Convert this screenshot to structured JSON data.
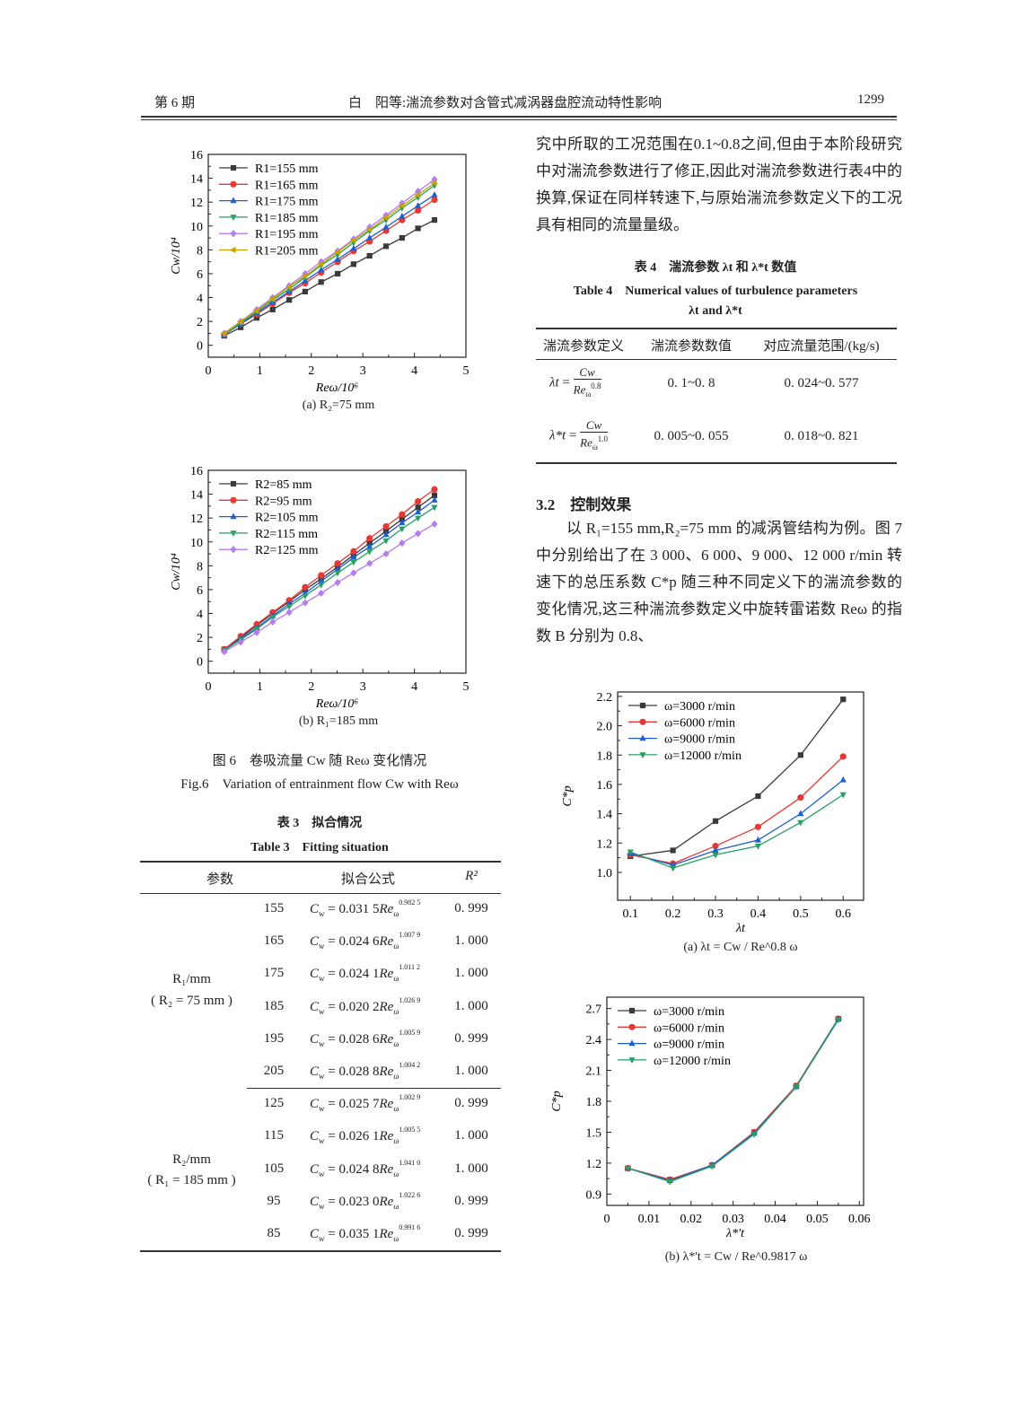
{
  "header": {
    "issue": "第 6 期",
    "title": "白　阳等:湍流参数对含管式减涡器盘腔流动特性影响",
    "page": "1299"
  },
  "right_text": {
    "para1": "究中所取的工况范围在0.1~0.8之间,但由于本阶段研究中对湍流参数进行了修正,因此对湍流参数进行表4中的换算,保证在同样转速下,与原始湍流参数定义下的工况具有相同的流量量级。",
    "section": "3.2　控制效果",
    "para2": "以 R₁=155 mm,R₂=75 mm 的减涡管结构为例。图 7 中分别给出了在 3 000、6 000、9 000、12 000 r/min 转速下的总压系数 C*p 随三种不同定义下的湍流参数的变化情况,这三种湍流参数定义中旋转雷诺数 Reω 的指数 B 分别为 0.8、"
  },
  "table4": {
    "caption_cn": "表 4　湍流参数 λt 和 λ*t 数值",
    "caption_en": "Table 4　Numerical values of turbulence parameters",
    "caption_en2": "λt and λ*t",
    "headers": [
      "湍流参数定义",
      "湍流参数数值",
      "对应流量范围/(kg/s)"
    ],
    "rows": [
      {
        "symbol": "λt",
        "num": "Cw",
        "den_base": "Re",
        "den_sub": "ω",
        "den_exp": "0.8",
        "value": "0. 1~0. 8",
        "range": "0. 024~0. 577"
      },
      {
        "symbol": "λ*t",
        "num": "Cw",
        "den_base": "Re",
        "den_sub": "ω",
        "den_exp": "1.0",
        "value": "0. 005~0. 055",
        "range": "0. 018~0. 821"
      }
    ]
  },
  "fig6": {
    "sub_a": "(a) R₂=75 mm",
    "sub_b": "(b) R₁=185 mm",
    "caption_cn": "图 6　卷吸流量 Cw 随 Reω 变化情况",
    "caption_en": "Fig.6　Variation of entrainment flow Cw with Reω"
  },
  "fig7": {
    "sub_a": "(a) λt = Cw / Re^0.8 ω",
    "sub_b": "(b) λ*'t = Cw / Re^0.9817 ω"
  },
  "table3": {
    "caption_cn": "表 3　拟合情况",
    "caption_en": "Table 3　Fitting situation",
    "headers": [
      "参数",
      "拟合公式",
      "R²"
    ],
    "group1": {
      "label": "R₁/mm",
      "cond": "( R₂ = 75 mm )"
    },
    "group2": {
      "label": "R₂/mm",
      "cond": "( R₁ = 185 mm )"
    },
    "rows": [
      {
        "param": "155",
        "coef": "0.031 5",
        "exp": "0.982 5",
        "r2": "0. 999"
      },
      {
        "param": "165",
        "coef": "0.024 6",
        "exp": "1.007 9",
        "r2": "1. 000"
      },
      {
        "param": "175",
        "coef": "0.024 1",
        "exp": "1.011 2",
        "r2": "1. 000"
      },
      {
        "param": "185",
        "coef": "0.020 2",
        "exp": "1.026 9",
        "r2": "1. 000"
      },
      {
        "param": "195",
        "coef": "0.028 6",
        "exp": "1.005 9",
        "r2": "0. 999"
      },
      {
        "param": "205",
        "coef": "0.028 8",
        "exp": "1.004 2",
        "r2": "1. 000"
      },
      {
        "param": "125",
        "coef": "0.025 7",
        "exp": "1.002 9",
        "r2": "0. 999"
      },
      {
        "param": "115",
        "coef": "0.026 1",
        "exp": "1.005 5",
        "r2": "1. 000"
      },
      {
        "param": "105",
        "coef": "0.024 8",
        "exp": "1.041 0",
        "r2": "1. 000"
      },
      {
        "param": "95",
        "coef": "0.023 0",
        "exp": "1.022 6",
        "r2": "0. 999"
      },
      {
        "param": "85",
        "coef": "0.035 1",
        "exp": "0.991 6",
        "r2": "0. 999"
      }
    ]
  },
  "chart_data": [
    {
      "id": "fig6a",
      "type": "line",
      "xlabel": "Reω/10⁶",
      "ylabel": "Cw/10⁴",
      "xlim": [
        0,
        5
      ],
      "ylim": [
        -1,
        16
      ],
      "xticks": [
        0,
        1,
        2,
        3,
        4,
        5
      ],
      "yticks": [
        0,
        2,
        4,
        6,
        8,
        10,
        12,
        14,
        16
      ],
      "legend": "top-left",
      "x": [
        0.31,
        0.63,
        0.94,
        1.25,
        1.57,
        1.88,
        2.19,
        2.51,
        2.82,
        3.13,
        3.45,
        3.76,
        4.07,
        4.39
      ],
      "series": [
        {
          "name": "R1=155 mm",
          "color": "#3a3a3a",
          "marker": "square",
          "values": [
            0.8,
            1.5,
            2.3,
            3.0,
            3.8,
            4.5,
            5.3,
            6.0,
            6.8,
            7.5,
            8.3,
            9.0,
            9.8,
            10.5
          ]
        },
        {
          "name": "R1=165 mm",
          "color": "#e53935",
          "marker": "circle",
          "values": [
            0.9,
            1.8,
            2.6,
            3.5,
            4.4,
            5.2,
            6.1,
            7.0,
            7.9,
            8.7,
            9.6,
            10.5,
            11.3,
            12.2
          ]
        },
        {
          "name": "R1=175 mm",
          "color": "#1e5fd0",
          "marker": "triangle-up",
          "values": [
            0.9,
            1.8,
            2.7,
            3.6,
            4.5,
            5.4,
            6.3,
            7.2,
            8.1,
            9.0,
            9.9,
            10.8,
            11.7,
            12.6
          ]
        },
        {
          "name": "R1=185 mm",
          "color": "#26a065",
          "marker": "triangle-down",
          "values": [
            0.9,
            1.9,
            2.8,
            3.8,
            4.7,
            5.7,
            6.7,
            7.6,
            8.6,
            9.6,
            10.5,
            11.5,
            12.4,
            13.4
          ]
        },
        {
          "name": "R1=195 mm",
          "color": "#b57cec",
          "marker": "diamond",
          "values": [
            1.0,
            2.0,
            3.0,
            4.0,
            5.0,
            6.0,
            7.0,
            7.9,
            8.9,
            9.9,
            10.9,
            11.9,
            12.9,
            13.9
          ]
        },
        {
          "name": "R1=205 mm",
          "color": "#c9a400",
          "marker": "triangle-left",
          "values": [
            1.0,
            2.0,
            2.9,
            3.9,
            4.9,
            5.8,
            6.8,
            7.8,
            8.8,
            9.7,
            10.7,
            11.7,
            12.6,
            13.6
          ]
        }
      ]
    },
    {
      "id": "fig6b",
      "type": "line",
      "xlabel": "Reω/10⁶",
      "ylabel": "Cw/10⁴",
      "xlim": [
        0,
        5
      ],
      "ylim": [
        -1,
        16
      ],
      "xticks": [
        0,
        1,
        2,
        3,
        4,
        5
      ],
      "yticks": [
        0,
        2,
        4,
        6,
        8,
        10,
        12,
        14,
        16
      ],
      "legend": "top-left",
      "x": [
        0.31,
        0.63,
        0.94,
        1.25,
        1.57,
        1.88,
        2.19,
        2.51,
        2.82,
        3.13,
        3.45,
        3.76,
        4.07,
        4.39
      ],
      "series": [
        {
          "name": "R2=85 mm",
          "color": "#3a3a3a",
          "marker": "square",
          "values": [
            1.0,
            2.0,
            3.0,
            4.0,
            5.0,
            6.0,
            6.9,
            7.9,
            8.9,
            9.9,
            10.9,
            11.9,
            12.9,
            13.9
          ]
        },
        {
          "name": "R2=95 mm",
          "color": "#e53935",
          "marker": "circle",
          "values": [
            1.0,
            2.1,
            3.1,
            4.1,
            5.1,
            6.2,
            7.2,
            8.2,
            9.2,
            10.3,
            11.3,
            12.3,
            13.4,
            14.4
          ]
        },
        {
          "name": "R2=105 mm",
          "color": "#1e5fd0",
          "marker": "triangle-up",
          "values": [
            0.9,
            1.9,
            2.8,
            3.8,
            4.8,
            5.7,
            6.7,
            7.7,
            8.7,
            9.6,
            10.6,
            11.6,
            12.5,
            13.5
          ]
        },
        {
          "name": "R2=115 mm",
          "color": "#26a065",
          "marker": "triangle-down",
          "values": [
            0.9,
            1.8,
            2.7,
            3.7,
            4.6,
            5.5,
            6.4,
            7.4,
            8.3,
            9.2,
            10.1,
            11.1,
            12.0,
            12.9
          ]
        },
        {
          "name": "R2=125 mm",
          "color": "#b57cec",
          "marker": "diamond",
          "values": [
            0.8,
            1.6,
            2.4,
            3.3,
            4.1,
            4.9,
            5.7,
            6.6,
            7.4,
            8.2,
            9.0,
            9.9,
            10.7,
            11.5
          ]
        }
      ]
    },
    {
      "id": "fig7a",
      "type": "line",
      "xlabel": "λt",
      "ylabel": "C*p",
      "xlim": [
        0.07,
        0.648
      ],
      "ylim": [
        0.81,
        2.23
      ],
      "xticks": [
        0.1,
        0.2,
        0.3,
        0.4,
        0.5,
        0.6
      ],
      "yticks": [
        1.0,
        1.2,
        1.4,
        1.6,
        1.8,
        2.0,
        2.2
      ],
      "legend": "top-left",
      "x": [
        0.1,
        0.2,
        0.3,
        0.4,
        0.5,
        0.6
      ],
      "series": [
        {
          "name": "ω=3000 r/min",
          "color": "#3a3a3a",
          "marker": "square",
          "values": [
            1.11,
            1.15,
            1.35,
            1.52,
            1.8,
            2.18
          ]
        },
        {
          "name": "ω=6000 r/min",
          "color": "#e53935",
          "marker": "circle",
          "values": [
            1.12,
            1.06,
            1.18,
            1.31,
            1.51,
            1.79
          ]
        },
        {
          "name": "ω=9000 r/min",
          "color": "#1e5fd0",
          "marker": "triangle-up",
          "values": [
            1.13,
            1.05,
            1.15,
            1.22,
            1.4,
            1.63
          ]
        },
        {
          "name": "ω=12000 r/min",
          "color": "#26a065",
          "marker": "triangle-down",
          "values": [
            1.14,
            1.03,
            1.12,
            1.18,
            1.34,
            1.53
          ]
        }
      ]
    },
    {
      "id": "fig7b",
      "type": "line",
      "xlabel": "λ*'t",
      "ylabel": "C*p",
      "xlim": [
        0,
        0.061
      ],
      "ylim": [
        0.79,
        2.81
      ],
      "xticks": [
        0,
        0.01,
        0.02,
        0.03,
        0.04,
        0.05,
        0.06
      ],
      "yticks": [
        0.9,
        1.2,
        1.5,
        1.8,
        2.1,
        2.4,
        2.7
      ],
      "legend": "top-left",
      "x": [
        0.005,
        0.015,
        0.025,
        0.035,
        0.045,
        0.055
      ],
      "series": [
        {
          "name": "ω=3000 r/min",
          "color": "#3a3a3a",
          "marker": "square",
          "values": [
            1.15,
            1.04,
            1.18,
            1.5,
            1.95,
            2.6
          ]
        },
        {
          "name": "ω=6000 r/min",
          "color": "#e53935",
          "marker": "circle",
          "values": [
            1.15,
            1.04,
            1.18,
            1.5,
            1.95,
            2.6
          ]
        },
        {
          "name": "ω=9000 r/min",
          "color": "#1e5fd0",
          "marker": "triangle-up",
          "values": [
            1.15,
            1.03,
            1.18,
            1.49,
            1.94,
            2.6
          ]
        },
        {
          "name": "ω=12000 r/min",
          "color": "#26a065",
          "marker": "triangle-down",
          "values": [
            1.15,
            1.02,
            1.17,
            1.48,
            1.94,
            2.59
          ]
        }
      ]
    }
  ]
}
